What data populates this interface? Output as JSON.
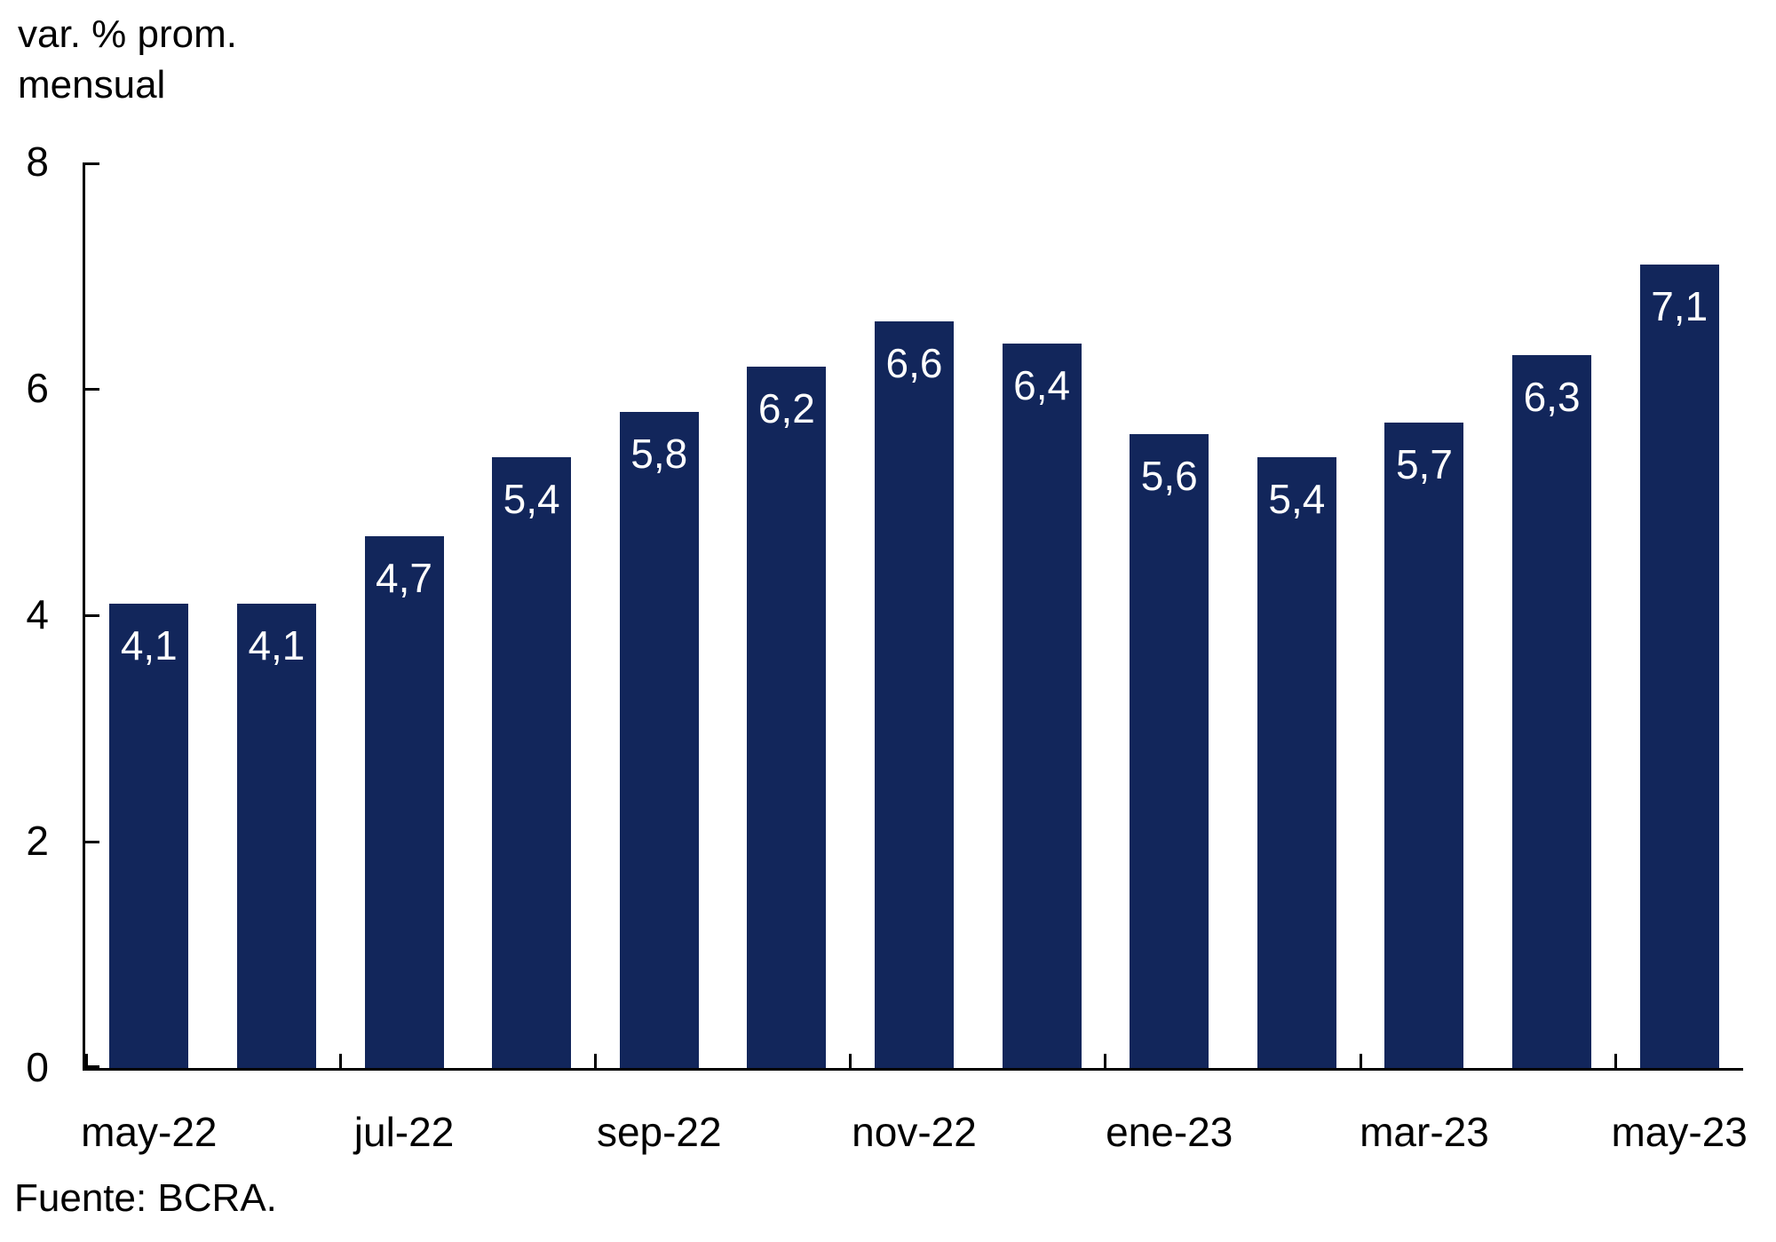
{
  "title": {
    "line1": "var. % prom.",
    "line2": "mensual"
  },
  "source": "Fuente: BCRA.",
  "colors": {
    "bar": "#12265b",
    "bar_value_text": "#ffffff",
    "axis": "#000000",
    "text": "#000000",
    "background": "#ffffff"
  },
  "chart_data": {
    "type": "bar",
    "title": "var. % prom. mensual",
    "ylabel": "var. % prom. mensual",
    "xlabel": "",
    "values": [
      4.1,
      4.1,
      4.7,
      5.4,
      5.8,
      6.2,
      6.6,
      6.4,
      5.6,
      5.4,
      5.7,
      6.3,
      7.1
    ],
    "bar_labels": [
      "4,1",
      "4,1",
      "4,7",
      "5,4",
      "5,8",
      "6,2",
      "6,6",
      "6,4",
      "5,6",
      "5,4",
      "5,7",
      "6,3",
      "7,1"
    ],
    "x_tick_labels": [
      "may-22",
      "jul-22",
      "sep-22",
      "nov-22",
      "ene-23",
      "mar-23",
      "may-23"
    ],
    "x_label_interval": 2,
    "y_ticks": [
      0,
      2,
      4,
      6,
      8
    ],
    "ylim": [
      0,
      8
    ],
    "grid": false,
    "legend": false,
    "source": "Fuente: BCRA."
  }
}
